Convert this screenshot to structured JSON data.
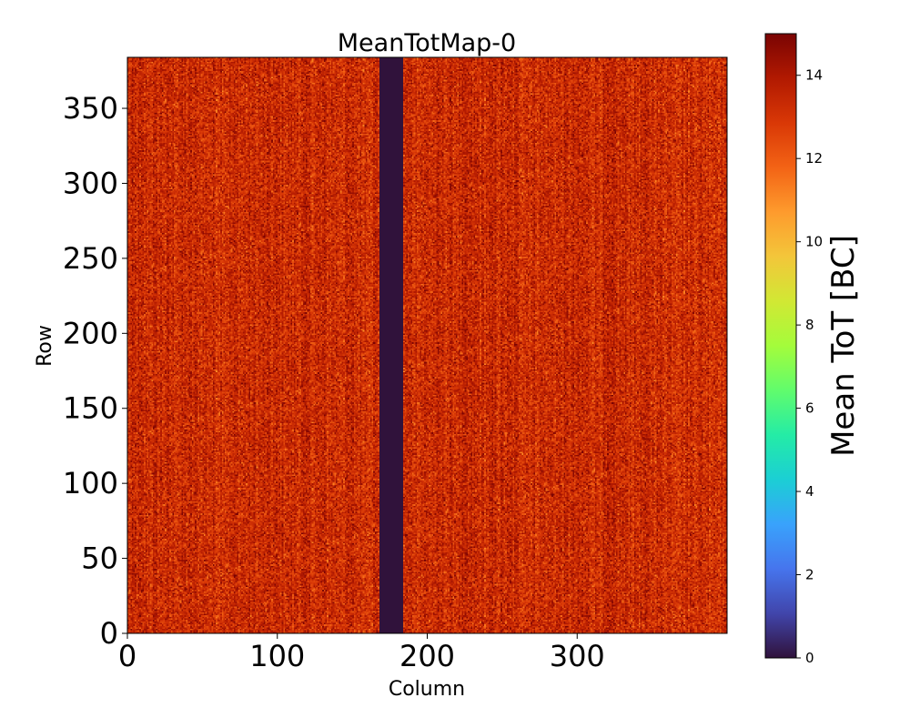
{
  "chart_data": {
    "type": "heatmap",
    "title": "MeanTotMap-0",
    "xlabel": "Column",
    "ylabel": "Row",
    "xlim": [
      0,
      400
    ],
    "ylim": [
      0,
      384
    ],
    "x_ticks": [
      0,
      100,
      200,
      300
    ],
    "y_ticks": [
      0,
      50,
      100,
      150,
      200,
      250,
      300,
      350
    ],
    "colorbar": {
      "label": "Mean ToT [BC]",
      "range": [
        0,
        15
      ],
      "ticks": [
        0,
        2,
        4,
        6,
        8,
        10,
        12,
        14
      ],
      "colormap": "turbo"
    },
    "matrix_summary": {
      "columns": 400,
      "rows": 384,
      "typical_value_range": [
        11,
        15
      ],
      "typical_mean": 13.3,
      "empty_column_range": [
        168,
        184
      ],
      "empty_column_value": 0
    }
  }
}
